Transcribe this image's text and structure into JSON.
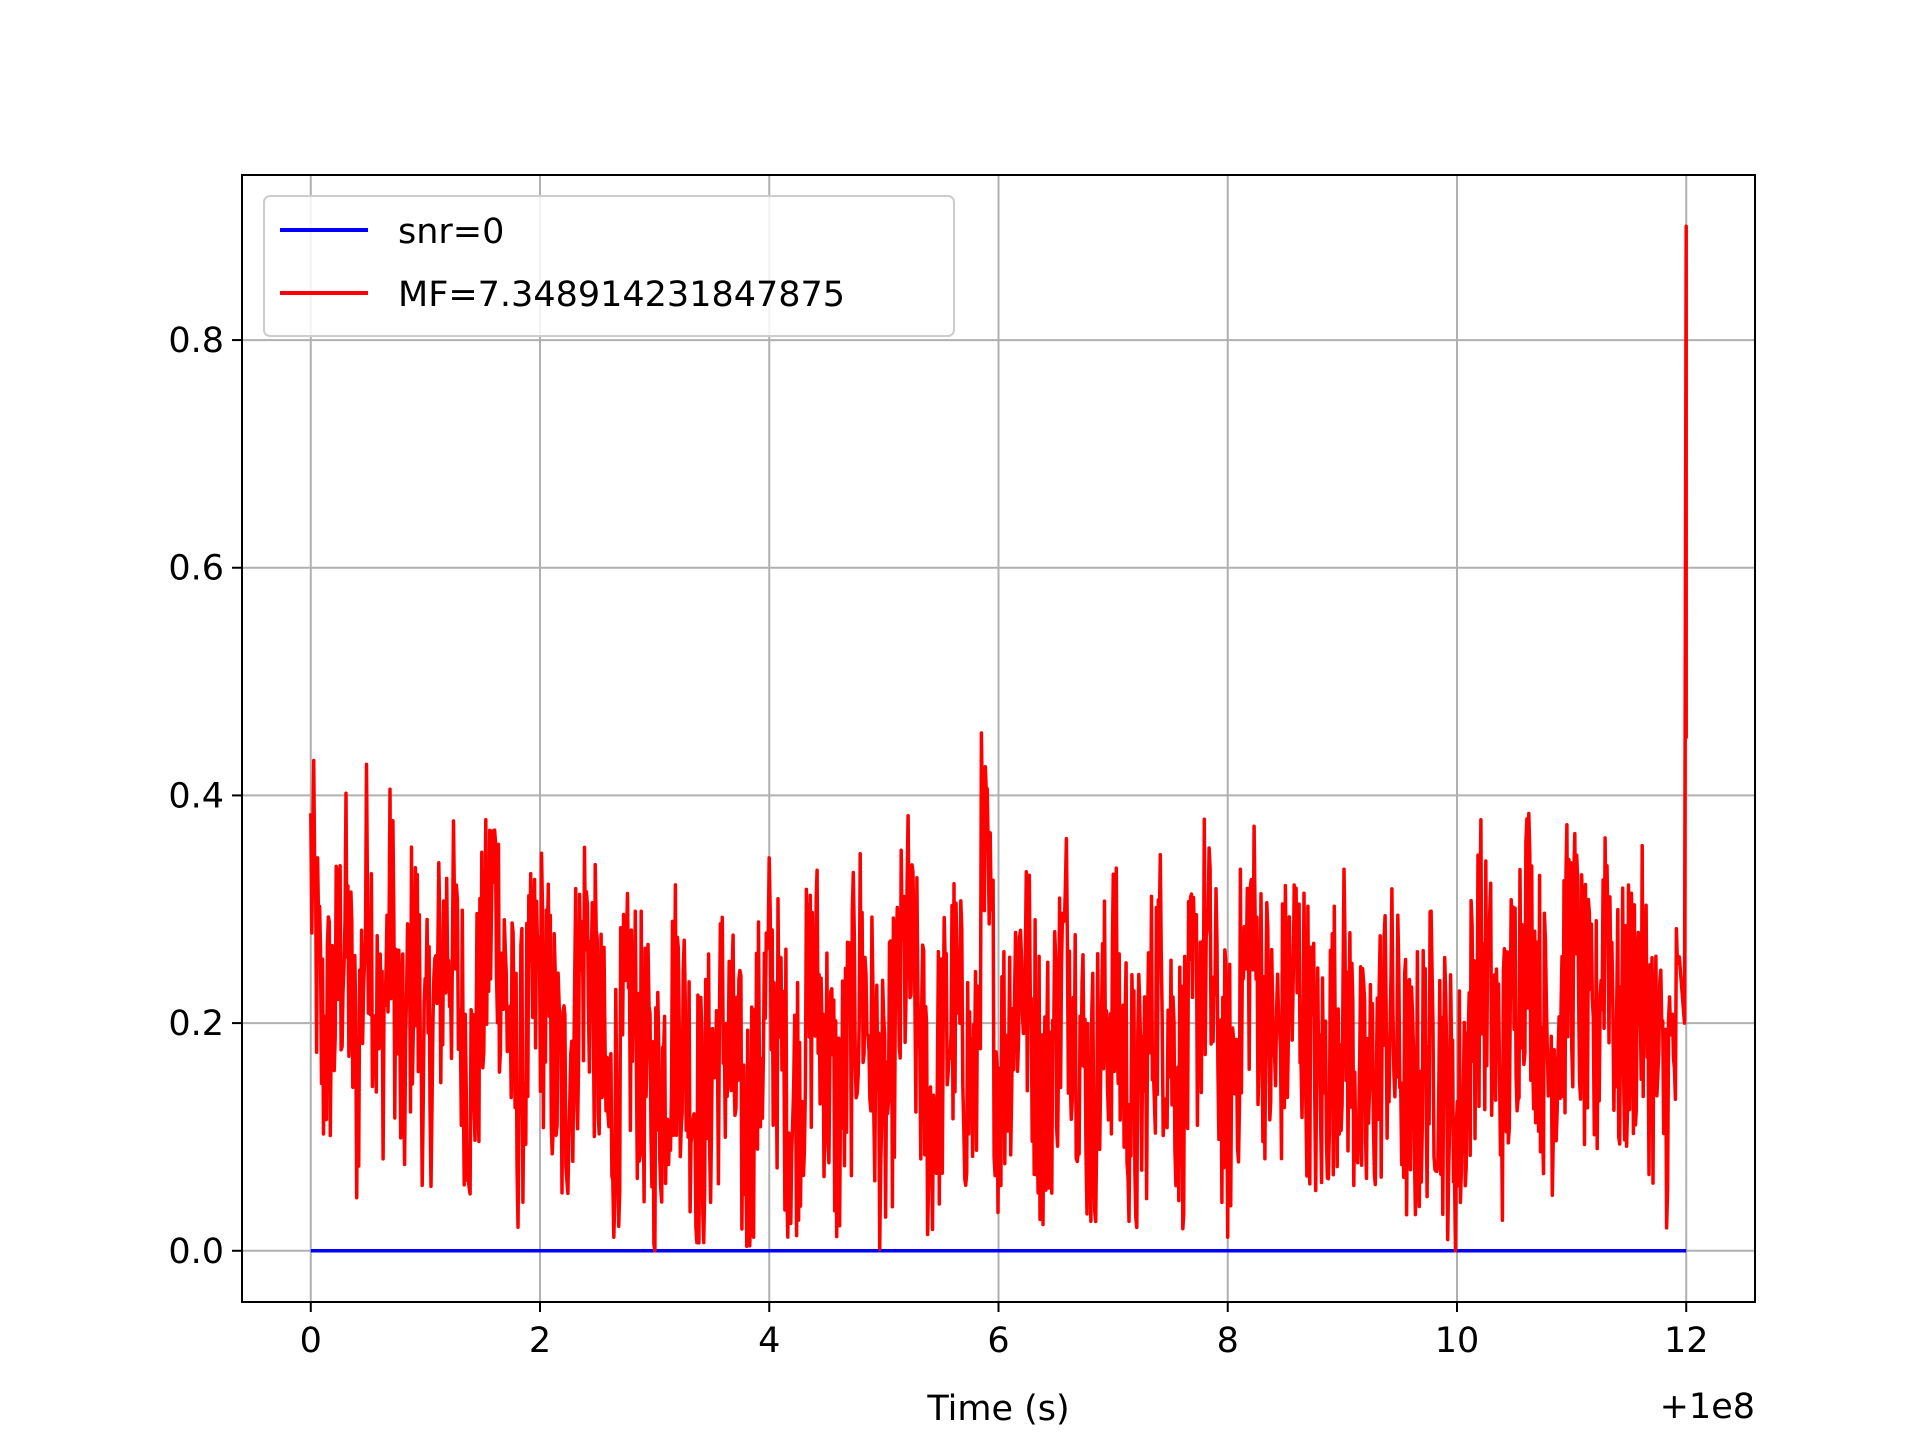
{
  "chart_data": {
    "type": "line",
    "title": "",
    "xlabel": "Time (s)",
    "ylabel": "",
    "x_offset_label": "+1e8",
    "xlim": [
      -0.6,
      12.6
    ],
    "ylim": [
      -0.045,
      0.945
    ],
    "xticks": [
      0,
      2,
      4,
      6,
      8,
      10,
      12
    ],
    "xtick_labels": [
      "0",
      "2",
      "4",
      "6",
      "8",
      "10",
      "12"
    ],
    "yticks": [
      0.0,
      0.2,
      0.4,
      0.6,
      0.8
    ],
    "ytick_labels": [
      "0.0",
      "0.2",
      "0.4",
      "0.6",
      "0.8"
    ],
    "grid": true,
    "legend_position": "top-left",
    "x_range": [
      0,
      12
    ],
    "series": [
      {
        "name": "snr=0",
        "color": "#0000ff",
        "x": [
          0,
          12
        ],
        "y": [
          0,
          0
        ]
      },
      {
        "name": "MF=7.348914231847875",
        "color": "#ff0000",
        "x": [
          0,
          0.05,
          0.1,
          0.2,
          0.3,
          0.4,
          0.5,
          0.6,
          0.7,
          0.8,
          0.9,
          1.0,
          1.2,
          1.4,
          1.6,
          1.8,
          2.0,
          2.2,
          2.4,
          2.6,
          2.8,
          3.0,
          3.2,
          3.4,
          3.6,
          3.8,
          4.0,
          4.2,
          4.4,
          4.6,
          4.8,
          5.0,
          5.2,
          5.4,
          5.6,
          5.8,
          5.85,
          5.9,
          6.0,
          6.2,
          6.4,
          6.6,
          6.8,
          7.0,
          7.2,
          7.4,
          7.6,
          7.8,
          8.0,
          8.2,
          8.4,
          8.6,
          8.8,
          9.0,
          9.2,
          9.4,
          9.6,
          9.8,
          10.0,
          10.2,
          10.4,
          10.6,
          10.8,
          11.0,
          11.2,
          11.3,
          11.4,
          11.6,
          11.8,
          11.95,
          12.0,
          12.0
        ],
        "y": [
          0.48,
          0.33,
          0.18,
          0.24,
          0.38,
          0.12,
          0.47,
          0.15,
          0.4,
          0.09,
          0.35,
          0.13,
          0.38,
          0.11,
          0.44,
          0.1,
          0.31,
          0.08,
          0.37,
          0.05,
          0.23,
          0.07,
          0.26,
          0.05,
          0.22,
          0.03,
          0.28,
          0.07,
          0.29,
          0.05,
          0.31,
          0.04,
          0.35,
          0.06,
          0.25,
          0.09,
          0.46,
          0.42,
          0.12,
          0.33,
          0.09,
          0.34,
          0.08,
          0.27,
          0.05,
          0.3,
          0.11,
          0.34,
          0.08,
          0.37,
          0.15,
          0.3,
          0.1,
          0.26,
          0.06,
          0.24,
          0.08,
          0.2,
          0.04,
          0.33,
          0.12,
          0.4,
          0.14,
          0.35,
          0.12,
          0.45,
          0.18,
          0.28,
          0.1,
          0.2,
          0.9,
          0.45
        ]
      }
    ]
  }
}
